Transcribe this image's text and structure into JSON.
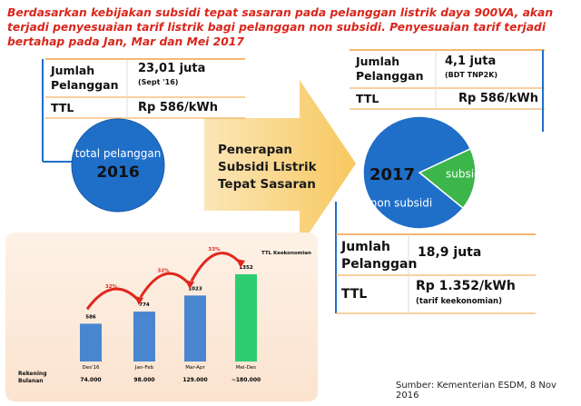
{
  "header": {
    "text": "Berdasarkan kebijakan subsidi tepat sasaran pada pelanggan listrik daya 900VA, akan terjadi penyesuaian tarif listrik bagi pelanggan non subsidi. Penyesuaian tarif terjadi bertahap pada Jan, Mar dan Mei 2017"
  },
  "left_panel": {
    "rows": [
      {
        "label": "Jumlah Pelanggan",
        "value": "23,01 juta",
        "note": "(Sept '16)"
      },
      {
        "label": "TTL",
        "value": "Rp 586/kWh"
      }
    ],
    "circle_label": "total pelanggan",
    "circle_year": "2016"
  },
  "arrow_text": "Penerapan Subsidi Listrik Tepat Sasaran",
  "right_panel": {
    "rows": [
      {
        "label": "Jumlah Pelanggan",
        "value": "4,1 juta",
        "note": "(BDT TNP2K)"
      },
      {
        "label": "TTL",
        "value": "Rp 586/kWh"
      }
    ]
  },
  "bottom_panel": {
    "rows": [
      {
        "label": "Jumlah Pelanggan",
        "value": "18,9 juta"
      },
      {
        "label": "TTL",
        "value": "Rp 1.352/kWh",
        "note": "(tarif keekonomian)"
      }
    ]
  },
  "source": "Sumber: Kementerian ESDM, 8 Nov 2016",
  "chart_data": [
    {
      "type": "pie",
      "title": "2017",
      "categories": [
        "subsidi",
        "non subsidi"
      ],
      "values": [
        4.1,
        18.9
      ],
      "colors": [
        "#3cb54a",
        "#1f6fc9"
      ]
    },
    {
      "type": "bar",
      "categories": [
        "Des'16",
        "Jan-Feb",
        "Mar-Apr",
        "Mei-Des"
      ],
      "values": [
        586,
        774,
        1023,
        1352
      ],
      "colors": [
        "#4a86d0",
        "#4a86d0",
        "#4a86d0",
        "#2ecc71"
      ],
      "annotations": [
        "32%",
        "32%",
        "33%"
      ],
      "annotation_color": "#e0281e",
      "legend_label": "TTL Keekonomian",
      "row_label": "Rekening Bulanan",
      "row_values": [
        "74.000",
        "98.000",
        "129.000",
        "~180.000"
      ]
    }
  ]
}
